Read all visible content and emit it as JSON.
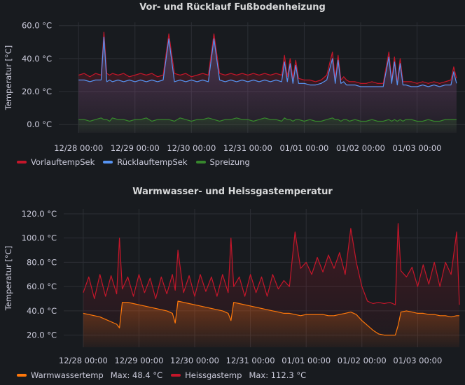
{
  "chart_data": [
    {
      "type": "line",
      "title": "Vor- und Rücklauf Fußbodenheizung",
      "ylabel": "Temperatur [°C]",
      "ylim": [
        -5,
        62
      ],
      "yticks": [
        "0.0 °C",
        "20.0 °C",
        "40.0 °C",
        "60.0 °C"
      ],
      "ytick_values": [
        0,
        20,
        40,
        60
      ],
      "xticks": [
        "12/28 00:00",
        "12/29 00:00",
        "12/30 00:00",
        "12/31 00:00",
        "01/01 00:00",
        "01/02 00:00",
        "01/03 00:00"
      ],
      "x": [
        0,
        0.1,
        0.2,
        0.3,
        0.4,
        0.45,
        0.5,
        0.55,
        0.6,
        0.7,
        0.8,
        0.9,
        1.0,
        1.1,
        1.2,
        1.3,
        1.4,
        1.5,
        1.6,
        1.7,
        1.8,
        1.9,
        2.0,
        2.1,
        2.2,
        2.3,
        2.4,
        2.5,
        2.6,
        2.7,
        2.8,
        2.9,
        3.0,
        3.1,
        3.2,
        3.3,
        3.4,
        3.5,
        3.6,
        3.65,
        3.7,
        3.75,
        3.8,
        3.85,
        3.9,
        4.0,
        4.1,
        4.2,
        4.3,
        4.4,
        4.5,
        4.55,
        4.6,
        4.65,
        4.7,
        4.75,
        4.8,
        4.9,
        5.0,
        5.1,
        5.2,
        5.3,
        5.4,
        5.5,
        5.55,
        5.6,
        5.65,
        5.7,
        5.75,
        5.8,
        5.9,
        6.0,
        6.1,
        6.2,
        6.3,
        6.4,
        6.5,
        6.6,
        6.65,
        6.7
      ],
      "series": [
        {
          "name": "VorlauftempSek",
          "color": "#c4162a",
          "values": [
            30,
            31,
            29,
            31,
            30,
            56,
            31,
            30,
            31,
            30,
            31,
            29,
            30,
            31,
            30,
            31,
            29,
            30,
            55,
            31,
            30,
            31,
            29,
            30,
            31,
            30,
            55,
            31,
            30,
            31,
            30,
            31,
            30,
            31,
            30,
            31,
            30,
            31,
            30,
            42,
            29,
            40,
            28,
            39,
            28,
            27,
            27,
            26,
            27,
            30,
            44,
            28,
            42,
            27,
            29,
            27,
            26,
            26,
            25,
            25,
            26,
            25,
            25,
            44,
            27,
            41,
            26,
            40,
            26,
            26,
            26,
            25,
            26,
            25,
            26,
            25,
            26,
            27,
            35,
            28
          ]
        },
        {
          "name": "RücklauftempSek",
          "color": "#5794f2",
          "values": [
            27,
            27,
            26,
            27,
            27,
            53,
            26,
            27,
            26,
            27,
            26,
            27,
            26,
            27,
            26,
            27,
            26,
            27,
            52,
            26,
            27,
            26,
            27,
            26,
            27,
            26,
            52,
            27,
            26,
            27,
            26,
            27,
            26,
            27,
            26,
            27,
            26,
            27,
            26,
            38,
            26,
            37,
            25,
            36,
            25,
            25,
            24,
            24,
            25,
            27,
            40,
            25,
            39,
            25,
            26,
            24,
            24,
            24,
            23,
            23,
            23,
            23,
            23,
            41,
            25,
            38,
            24,
            37,
            24,
            24,
            23,
            23,
            24,
            23,
            24,
            23,
            24,
            24,
            32,
            25
          ]
        },
        {
          "name": "Spreizung",
          "color": "#37872d",
          "values": [
            3,
            3,
            2,
            3,
            4,
            3,
            3,
            2,
            4,
            3,
            3,
            2,
            3,
            3,
            4,
            2,
            3,
            3,
            3,
            2,
            4,
            3,
            2,
            3,
            3,
            4,
            3,
            2,
            3,
            3,
            4,
            3,
            3,
            2,
            3,
            4,
            3,
            3,
            2,
            4,
            3,
            3,
            2,
            3,
            3,
            2,
            3,
            2,
            2,
            3,
            4,
            3,
            3,
            2,
            3,
            3,
            2,
            3,
            2,
            2,
            3,
            2,
            2,
            3,
            2,
            3,
            2,
            3,
            2,
            3,
            3,
            2,
            2,
            3,
            2,
            2,
            3,
            3,
            3,
            3
          ]
        }
      ]
    },
    {
      "type": "line",
      "title": "Warmwasser- und Heissgastemperatur",
      "ylabel": "Temperatur [°C]",
      "ylim": [
        10,
        124
      ],
      "yticks": [
        "20.0 °C",
        "40.0 °C",
        "60.0 °C",
        "80.0 °C",
        "100.0 °C",
        "120.0 °C"
      ],
      "ytick_values": [
        20,
        40,
        60,
        80,
        100,
        120
      ],
      "xticks": [
        "12/28 00:00",
        "12/29 00:00",
        "12/30 00:00",
        "12/31 00:00",
        "01/01 00:00",
        "01/02 00:00",
        "01/03 00:00"
      ],
      "x": [
        0,
        0.1,
        0.2,
        0.3,
        0.4,
        0.5,
        0.6,
        0.65,
        0.7,
        0.8,
        0.9,
        1.0,
        1.1,
        1.2,
        1.3,
        1.4,
        1.5,
        1.6,
        1.65,
        1.7,
        1.8,
        1.9,
        2.0,
        2.1,
        2.2,
        2.3,
        2.4,
        2.5,
        2.6,
        2.65,
        2.7,
        2.8,
        2.9,
        3.0,
        3.1,
        3.2,
        3.3,
        3.4,
        3.5,
        3.6,
        3.7,
        3.8,
        3.9,
        4.0,
        4.1,
        4.2,
        4.3,
        4.4,
        4.5,
        4.6,
        4.7,
        4.8,
        4.9,
        5.0,
        5.1,
        5.2,
        5.3,
        5.4,
        5.5,
        5.6,
        5.65,
        5.7,
        5.8,
        5.9,
        6.0,
        6.1,
        6.2,
        6.3,
        6.4,
        6.5,
        6.6,
        6.7,
        6.75
      ],
      "series": [
        {
          "name": "Warmwassertemp",
          "color": "#ff780a",
          "stat": "Max: 48.4 °C",
          "values": [
            38,
            37,
            36,
            35,
            33,
            31,
            29,
            26,
            47,
            47,
            46,
            45,
            44,
            43,
            42,
            41,
            40,
            38,
            30,
            48,
            47,
            46,
            45,
            44,
            43,
            42,
            41,
            40,
            38,
            32,
            47,
            46,
            45,
            44,
            43,
            42,
            41,
            40,
            39,
            38,
            38,
            37,
            36,
            37,
            37,
            37,
            37,
            36,
            36,
            37,
            38,
            39,
            37,
            32,
            28,
            24,
            21,
            20,
            20,
            20,
            28,
            39,
            40,
            39,
            38,
            38,
            37,
            37,
            36,
            36,
            35,
            36,
            36
          ]
        },
        {
          "name": "Heissgastemp",
          "color": "#c4162a",
          "stat": "Max: 112.3 °C",
          "values": [
            55,
            68,
            50,
            70,
            52,
            69,
            54,
            100,
            58,
            68,
            52,
            70,
            55,
            67,
            50,
            68,
            54,
            70,
            57,
            90,
            55,
            69,
            52,
            70,
            56,
            68,
            52,
            70,
            55,
            100,
            60,
            68,
            52,
            70,
            55,
            68,
            52,
            70,
            58,
            65,
            60,
            105,
            75,
            80,
            70,
            84,
            72,
            86,
            75,
            88,
            70,
            108,
            80,
            60,
            48,
            46,
            47,
            46,
            47,
            45,
            112,
            73,
            68,
            76,
            60,
            78,
            62,
            80,
            60,
            80,
            70,
            105,
            45
          ]
        }
      ]
    }
  ]
}
